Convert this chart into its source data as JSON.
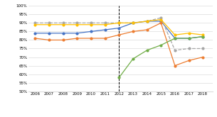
{
  "years": [
    2006,
    2007,
    2008,
    2009,
    2010,
    2011,
    2012,
    2013,
    2014,
    2015,
    2016,
    2017,
    2018
  ],
  "reading": [
    84,
    84,
    84,
    84,
    85,
    86,
    87,
    90,
    91,
    91,
    81,
    81,
    82
  ],
  "writing": [
    81,
    80,
    80,
    81,
    81,
    81,
    83,
    85,
    86,
    90,
    65,
    68,
    70
  ],
  "maths": [
    90,
    90,
    90,
    90,
    90,
    90,
    90,
    90,
    91,
    93,
    74,
    75,
    75
  ],
  "science": [
    89,
    89,
    89,
    89,
    89,
    89,
    90,
    90,
    91,
    92,
    83,
    84,
    83
  ],
  "phonics": [
    null,
    null,
    null,
    null,
    null,
    null,
    58,
    69,
    74,
    77,
    81,
    81,
    82
  ],
  "colors": {
    "reading": "#4472C4",
    "writing": "#ED7D31",
    "maths": "#A6A6A6",
    "science": "#FFC000",
    "phonics": "#70AD47"
  },
  "dashed_line_x": 2012,
  "ylim": [
    50,
    100
  ],
  "yticks": [
    50,
    55,
    60,
    65,
    70,
    75,
    80,
    85,
    90,
    95,
    100
  ],
  "ytick_labels": [
    "50%",
    "55%",
    "60%",
    "65%",
    "70%",
    "75%",
    "80%",
    "85%",
    "90%",
    "95%",
    "100%"
  ],
  "figsize": [
    3.05,
    1.65
  ],
  "dpi": 100
}
